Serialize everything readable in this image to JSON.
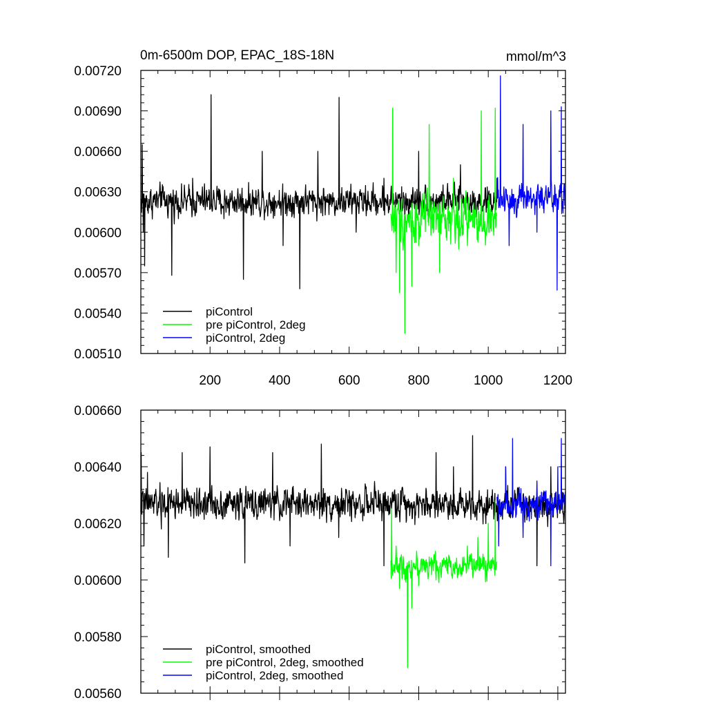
{
  "chart_data": [
    {
      "type": "line",
      "title": "0m-6500m DOP, EPAC_18S-18N",
      "units": "mmol/m^3",
      "xlim": [
        1,
        1222
      ],
      "ylim": [
        0.0051,
        0.0072
      ],
      "x_ticks": [
        200,
        400,
        600,
        800,
        1000,
        1200
      ],
      "x_tick_labels": [
        "200",
        "400",
        "600",
        "800",
        "1000",
        "1200"
      ],
      "y_ticks": [
        0.0051,
        0.0054,
        0.0057,
        0.006,
        0.0063,
        0.0066,
        0.0069,
        0.0072
      ],
      "y_tick_labels": [
        "0.00510",
        "0.00540",
        "0.00570",
        "0.00600",
        "0.00630",
        "0.00660",
        "0.00690",
        "0.00720"
      ],
      "grid": false,
      "legend_position": "bottom-left",
      "series": [
        {
          "name": "piControl",
          "color": "#000000",
          "x_start": 1,
          "x_end": 1030,
          "points": [
            [
              5,
              0.00665
            ],
            [
              8,
              0.006
            ],
            [
              12,
              0.00575
            ],
            [
              60,
              0.0063
            ],
            [
              90,
              0.00568
            ],
            [
              150,
              0.0064
            ],
            [
              203,
              0.00702
            ],
            [
              240,
              0.0061
            ],
            [
              296,
              0.00565
            ],
            [
              350,
              0.0066
            ],
            [
              410,
              0.0059
            ],
            [
              458,
              0.00558
            ],
            [
              510,
              0.0066
            ],
            [
              571,
              0.007
            ],
            [
              620,
              0.006
            ],
            [
              700,
              0.0064
            ],
            [
              760,
              0.0061
            ],
            [
              800,
              0.0066
            ],
            [
              860,
              0.006
            ],
            [
              920,
              0.0065
            ],
            [
              980,
              0.0061
            ],
            [
              1025,
              0.0064
            ]
          ],
          "mean": 0.00623,
          "amplitude": 0.00018
        },
        {
          "name": "pre piControl, 2deg",
          "color": "#00ff00",
          "x_start": 720,
          "x_end": 1025,
          "points": [
            [
              725,
              0.00692
            ],
            [
              735,
              0.0057
            ],
            [
              745,
              0.00555
            ],
            [
              760,
              0.00525
            ],
            [
              780,
              0.0056
            ],
            [
              800,
              0.0059
            ],
            [
              830,
              0.0068
            ],
            [
              860,
              0.0057
            ],
            [
              900,
              0.0064
            ],
            [
              940,
              0.0059
            ],
            [
              980,
              0.0069
            ],
            [
              1000,
              0.006
            ],
            [
              1020,
              0.00692
            ]
          ],
          "mean": 0.0061,
          "amplitude": 0.00028
        },
        {
          "name": "piControl, 2deg",
          "color": "#0000ff",
          "x_start": 1025,
          "x_end": 1222,
          "points": [
            [
              1035,
              0.00716
            ],
            [
              1060,
              0.0059
            ],
            [
              1100,
              0.0068
            ],
            [
              1140,
              0.006
            ],
            [
              1180,
              0.0069
            ],
            [
              1198,
              0.00557
            ],
            [
              1210,
              0.00693
            ],
            [
              1220,
              0.0062
            ]
          ],
          "mean": 0.00625,
          "amplitude": 0.00022
        }
      ]
    },
    {
      "type": "line",
      "title": "",
      "xlim": [
        1,
        1222
      ],
      "ylim": [
        0.0056,
        0.0066
      ],
      "x_ticks": [
        200,
        400,
        600,
        800,
        1000,
        1200
      ],
      "x_tick_labels": [],
      "y_ticks": [
        0.0056,
        0.0058,
        0.006,
        0.0062,
        0.0064,
        0.0066
      ],
      "y_tick_labels": [
        "0.00560",
        "0.00580",
        "0.00600",
        "0.00620",
        "0.00640",
        "0.00660"
      ],
      "grid": false,
      "legend_position": "bottom-left",
      "series": [
        {
          "name": "piControl, smoothed",
          "color": "#000000",
          "x_start": 1,
          "x_end": 1222,
          "points": [
            [
              2,
              0.00645
            ],
            [
              10,
              0.00612
            ],
            [
              20,
              0.00638
            ],
            [
              60,
              0.00618
            ],
            [
              80,
              0.00608
            ],
            [
              120,
              0.00645
            ],
            [
              200,
              0.00647
            ],
            [
              260,
              0.00628
            ],
            [
              300,
              0.00606
            ],
            [
              380,
              0.00645
            ],
            [
              430,
              0.00612
            ],
            [
              520,
              0.00648
            ],
            [
              570,
              0.00615
            ],
            [
              640,
              0.00625
            ],
            [
              700,
              0.00605
            ],
            [
              760,
              0.0063
            ],
            [
              800,
              0.00622
            ],
            [
              850,
              0.00645
            ],
            [
              900,
              0.0064
            ],
            [
              955,
              0.00651
            ],
            [
              1000,
              0.00625
            ],
            [
              1050,
              0.0064
            ],
            [
              1100,
              0.0063
            ],
            [
              1140,
              0.00605
            ],
            [
              1180,
              0.0064
            ],
            [
              1220,
              0.0063
            ]
          ],
          "mean": 0.00627,
          "amplitude": 9e-05
        },
        {
          "name": "pre piControl, 2deg, smoothed",
          "color": "#00ff00",
          "x_start": 720,
          "x_end": 1025,
          "points": [
            [
              722,
              0.00625
            ],
            [
              735,
              0.00612
            ],
            [
              745,
              0.00597
            ],
            [
              760,
              0.006
            ],
            [
              768,
              0.00569
            ],
            [
              780,
              0.0059
            ],
            [
              800,
              0.00598
            ],
            [
              820,
              0.00605
            ],
            [
              850,
              0.006
            ],
            [
              880,
              0.00608
            ],
            [
              910,
              0.00605
            ],
            [
              940,
              0.00612
            ],
            [
              970,
              0.00615
            ],
            [
              1000,
              0.0062
            ],
            [
              1020,
              0.00628
            ]
          ],
          "mean": 0.00605,
          "amplitude": 7e-05
        },
        {
          "name": "piControl, 2deg, smoothed",
          "color": "#0000ff",
          "x_start": 1025,
          "x_end": 1222,
          "points": [
            [
              1030,
              0.00612
            ],
            [
              1050,
              0.0064
            ],
            [
              1070,
              0.0065
            ],
            [
              1100,
              0.00615
            ],
            [
              1140,
              0.00635
            ],
            [
              1180,
              0.00605
            ],
            [
              1200,
              0.0064
            ],
            [
              1210,
              0.0065
            ],
            [
              1220,
              0.0063
            ]
          ],
          "mean": 0.00627,
          "amplitude": 8e-05
        }
      ]
    }
  ]
}
